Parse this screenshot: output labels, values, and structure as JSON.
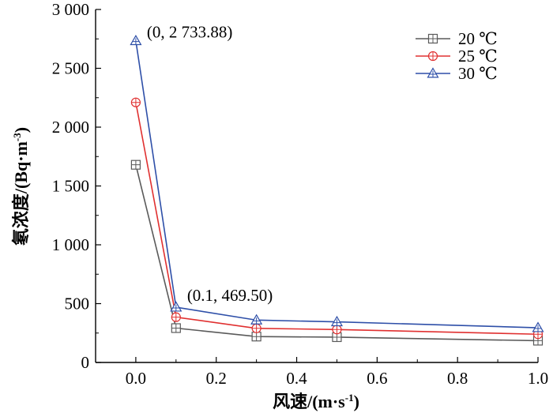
{
  "chart_data": {
    "type": "line",
    "xlabel": "风速/(m·s",
    "xlabel_sup": "-1",
    "xlabel_tail": ")",
    "ylabel": "氡浓度/(Bq·m",
    "ylabel_sup": "-3",
    "ylabel_tail": ")",
    "xlim": [
      -0.1,
      1.0
    ],
    "ylim": [
      0,
      3000
    ],
    "x_ticks": [
      0.0,
      0.2,
      0.4,
      0.6,
      0.8,
      1.0
    ],
    "x_tick_labels": [
      "0.0",
      "0.2",
      "0.4",
      "0.6",
      "0.8",
      "1.0"
    ],
    "y_ticks": [
      0,
      500,
      1000,
      1500,
      2000,
      2500,
      3000
    ],
    "y_tick_labels": [
      "0",
      "500",
      "1 000",
      "1 500",
      "2 000",
      "2 500",
      "3 000"
    ],
    "x": [
      0.0,
      0.1,
      0.3,
      0.5,
      1.0
    ],
    "series": [
      {
        "name": "20 ℃",
        "color": "#5a5a5a",
        "marker": "square-plus",
        "values": [
          1680,
          292,
          220,
          215,
          185
        ]
      },
      {
        "name": "25 ℃",
        "color": "#e03030",
        "marker": "circle-plus",
        "values": [
          2210,
          385,
          290,
          280,
          240
        ]
      },
      {
        "name": "30 ℃",
        "color": "#2e4fa8",
        "marker": "triangle-plus",
        "values": [
          2733.88,
          469.5,
          360,
          345,
          295
        ]
      }
    ],
    "annotations": [
      {
        "text": "(0, 2 733.88)",
        "x": 0.0,
        "y": 2733.88
      },
      {
        "text": "(0.1, 469.50)",
        "x": 0.1,
        "y": 469.5
      }
    ],
    "legend_position": "top-right",
    "grid": false
  }
}
